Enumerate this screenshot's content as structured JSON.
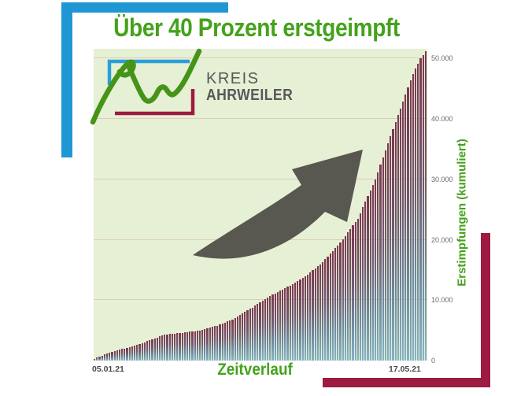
{
  "title": "Über 40 Prozent erstgeimpft",
  "logo": {
    "line1": "KREIS",
    "line2": "AHRWEILER"
  },
  "colors": {
    "green": "#45a21b",
    "blue": "#1f97d4",
    "maroon": "#9d1a41",
    "chart_bg": "#e6f0d4",
    "bar_top": "#7c3750",
    "bar_bottom": "#86b3c5",
    "arrow_gray": "#585750",
    "gray_text": "#58585a",
    "logo_green": "#459418"
  },
  "chart_data": {
    "type": "bar",
    "title": "Über 40 Prozent erstgeimpft",
    "xlabel": "Zeitverlauf",
    "ylabel": "Erstimpfungen (kumuliert)",
    "x_start_label": "05.01.21",
    "x_end_label": "17.05.21",
    "x_unit": "daily, cumulative first vaccinations",
    "y_ticks": [
      0,
      10000,
      20000,
      30000,
      40000,
      50000
    ],
    "y_tick_labels": [
      "0",
      "10.000",
      "20.000",
      "30.000",
      "40.000",
      "50.000"
    ],
    "ylim": [
      0,
      51600
    ],
    "grid": true,
    "legend": "none",
    "values": [
      300,
      470,
      640,
      815,
      985,
      1155,
      1330,
      1500,
      1600,
      1700,
      1800,
      1900,
      2000,
      2100,
      2200,
      2340,
      2485,
      2630,
      2770,
      2915,
      3055,
      3200,
      3355,
      3515,
      3670,
      3830,
      3985,
      4145,
      4300,
      4345,
      4385,
      4430,
      4470,
      4515,
      4555,
      4600,
      4655,
      4715,
      4770,
      4830,
      4885,
      4945,
      5000,
      5115,
      5230,
      5345,
      5455,
      5570,
      5685,
      5800,
      5970,
      6145,
      6315,
      6485,
      6655,
      6830,
      7000,
      7255,
      7515,
      7770,
      8030,
      8285,
      8545,
      8800,
      9070,
      9345,
      9615,
      9885,
      10155,
      10430,
      10700,
      10915,
      11130,
      11345,
      11555,
      11770,
      11985,
      12200,
      12445,
      12685,
      12930,
      13170,
      13415,
      13655,
      13900,
      14245,
      14585,
      14930,
      15270,
      15615,
      15955,
      16300,
      16755,
      17215,
      17670,
      18130,
      18585,
      19045,
      19500,
      20070,
      20645,
      21215,
      21785,
      22355,
      22930,
      23500,
      24430,
      25355,
      26285,
      27215,
      28145,
      29070,
      30000,
      31200,
      32400,
      33600,
      34800,
      36000,
      37165,
      38335,
      39500,
      40625,
      41750,
      42875,
      44000,
      45165,
      46335,
      47500,
      48335,
      49165,
      50000,
      50600,
      51200
    ]
  }
}
